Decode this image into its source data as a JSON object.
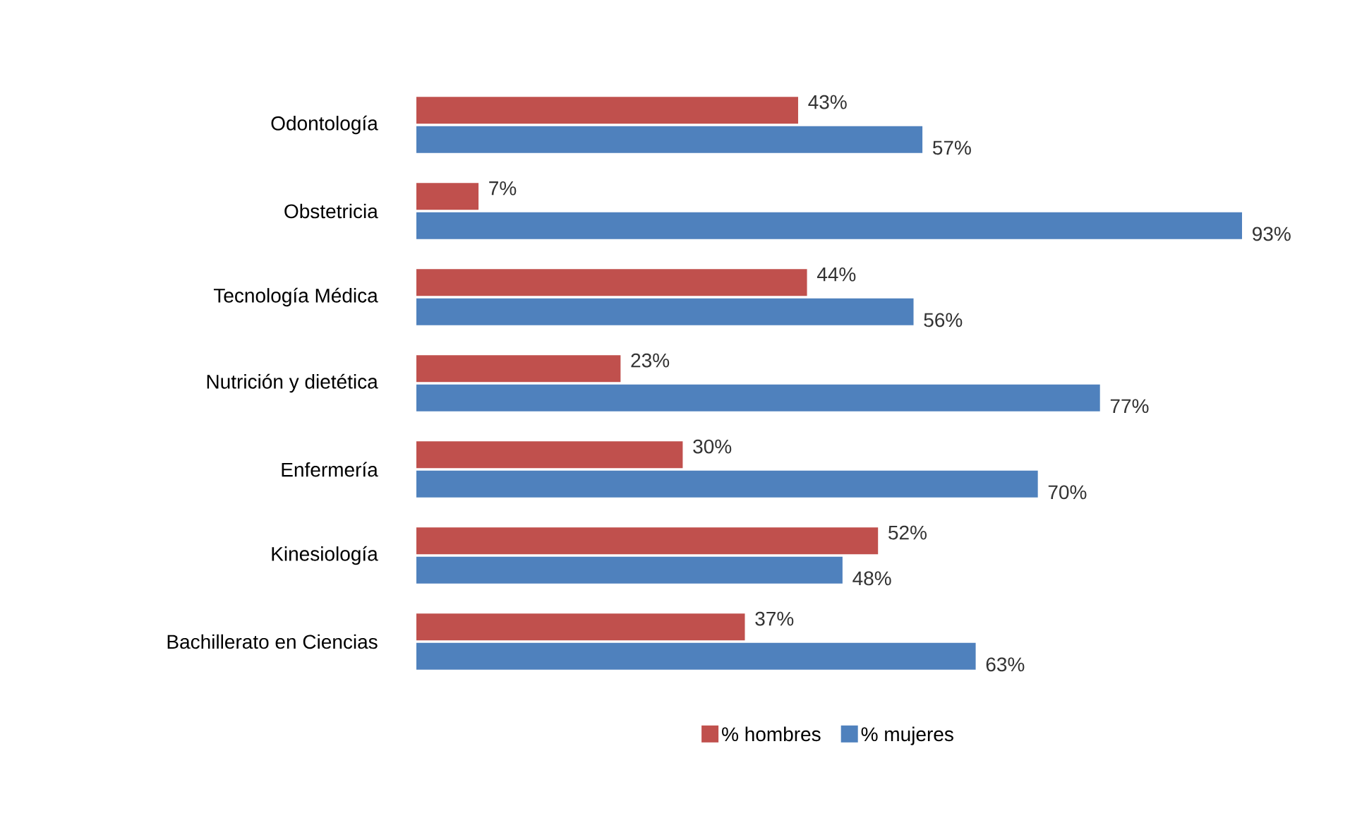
{
  "chart_data": {
    "type": "bar",
    "orientation": "horizontal",
    "categories": [
      "Odontología",
      "Obstetricia",
      "Tecnología Médica",
      "Nutrición y dietética",
      "Enfermería",
      "Kinesiología",
      "Bachillerato en Ciencias"
    ],
    "series": [
      {
        "name": "% hombres",
        "color": "#c0504d",
        "values": [
          43,
          7,
          44,
          23,
          30,
          52,
          37
        ],
        "value_labels": [
          "43%",
          "7%",
          "44%",
          "23%",
          "30%",
          "52%",
          "37%"
        ]
      },
      {
        "name": "% mujeres",
        "color": "#4f81bd",
        "values": [
          57,
          93,
          56,
          77,
          70,
          48,
          63
        ],
        "value_labels": [
          "57%",
          "93%",
          "56%",
          "77%",
          "70%",
          "48%",
          "63%"
        ]
      }
    ],
    "tick_labels": "y",
    "legend": "bottom"
  }
}
